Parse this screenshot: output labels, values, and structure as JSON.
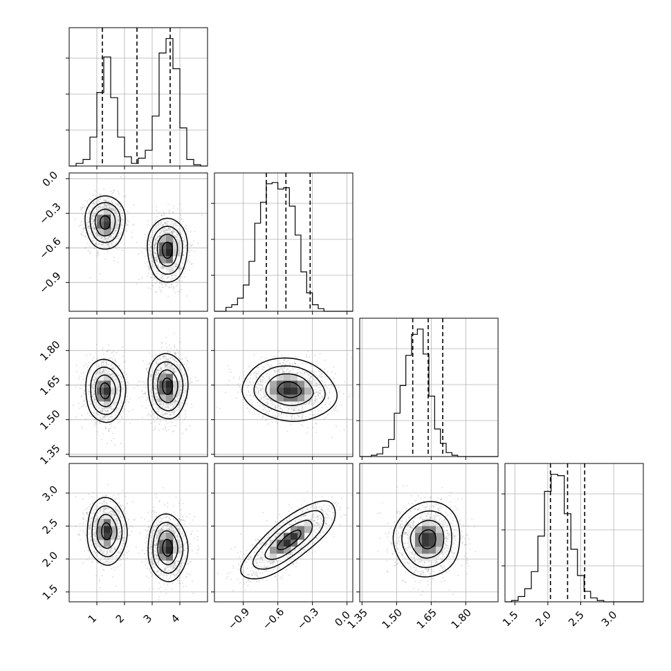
{
  "chart_data": {
    "type": "corner",
    "grid": true,
    "parameters": [
      {
        "range": [
          0,
          5
        ],
        "ticks": [
          1,
          2,
          3,
          4
        ],
        "tick_labels": [
          "1",
          "2",
          "3",
          "4"
        ],
        "quantiles": [
          1.2,
          2.45,
          3.65
        ],
        "histogram": {
          "bin_start": 0.0,
          "bin_width": 0.25,
          "counts": [
            0,
            0.02,
            0.05,
            0.22,
            0.56,
            0.83,
            0.52,
            0.22,
            0.07,
            0.02,
            0.06,
            0.12,
            0.38,
            0.86,
            0.97,
            0.74,
            0.29,
            0.05,
            0.01,
            0
          ]
        }
      },
      {
        "range": [
          -1.15,
          0.05
        ],
        "ticks": [
          -0.9,
          -0.6,
          -0.3,
          0.0
        ],
        "tick_labels": [
          "−0.9",
          "−0.6",
          "−0.3",
          "0.0"
        ],
        "quantiles": [
          -0.7,
          -0.53,
          -0.32
        ],
        "histogram": {
          "bin_start": -1.15,
          "bin_width": 0.05,
          "counts": [
            0,
            0,
            0.03,
            0.05,
            0.1,
            0.2,
            0.38,
            0.67,
            0.83,
            0.97,
            0.98,
            0.93,
            0.94,
            0.8,
            0.58,
            0.3,
            0.14,
            0.05,
            0.02,
            0,
            0,
            0,
            0,
            0
          ]
        }
      },
      {
        "range": [
          1.34,
          1.94
        ],
        "ticks": [
          1.35,
          1.5,
          1.65,
          1.8
        ],
        "tick_labels": [
          "1.35",
          "1.50",
          "1.65",
          "1.80"
        ],
        "quantiles": [
          1.57,
          1.637,
          1.7
        ],
        "histogram": {
          "bin_start": 1.34,
          "bin_width": 0.025,
          "counts": [
            0,
            0,
            0.01,
            0.02,
            0.07,
            0.13,
            0.33,
            0.54,
            0.77,
            0.93,
            0.97,
            0.78,
            0.46,
            0.21,
            0.1,
            0.03,
            0.01,
            0,
            0,
            0,
            0,
            0,
            0,
            0
          ]
        }
      },
      {
        "range": [
          1.35,
          3.45
        ],
        "ticks": [
          1.5,
          2.0,
          2.5,
          3.0
        ],
        "tick_labels": [
          "1.5",
          "2.0",
          "2.5",
          "3.0"
        ],
        "quantiles": [
          2.04,
          2.3,
          2.56
        ],
        "histogram": {
          "bin_start": 1.35,
          "bin_width": 0.1,
          "counts": [
            0,
            0.01,
            0.04,
            0.1,
            0.23,
            0.5,
            0.84,
            0.97,
            0.96,
            0.67,
            0.4,
            0.2,
            0.08,
            0.03,
            0.01,
            0,
            0,
            0,
            0,
            0,
            0
          ]
        }
      }
    ],
    "pairs": [
      {
        "col": 0,
        "row": 1,
        "blobs": [
          {
            "cx": 1.3,
            "cy": -0.38,
            "sx": 0.3,
            "sy": 0.1,
            "rho": 0,
            "w": 1
          },
          {
            "cx": 3.55,
            "cy": -0.62,
            "sx": 0.3,
            "sy": 0.12,
            "rho": 0,
            "w": 1.15
          }
        ]
      },
      {
        "col": 0,
        "row": 2,
        "blobs": [
          {
            "cx": 1.3,
            "cy": 1.625,
            "sx": 0.3,
            "sy": 0.058,
            "rho": 0,
            "w": 1
          },
          {
            "cx": 3.55,
            "cy": 1.645,
            "sx": 0.3,
            "sy": 0.06,
            "rho": 0,
            "w": 1.15
          }
        ]
      },
      {
        "col": 0,
        "row": 3,
        "blobs": [
          {
            "cx": 1.35,
            "cy": 2.42,
            "sx": 0.3,
            "sy": 0.21,
            "rho": 0,
            "w": 1
          },
          {
            "cx": 3.55,
            "cy": 2.17,
            "sx": 0.3,
            "sy": 0.21,
            "rho": 0,
            "w": 1.15
          }
        ]
      },
      {
        "col": 1,
        "row": 2,
        "blobs": [
          {
            "cx": -0.5,
            "cy": 1.63,
            "sx": 0.17,
            "sy": 0.055,
            "rho": -0.1,
            "w": 1
          }
        ]
      },
      {
        "col": 1,
        "row": 3,
        "blobs": [
          {
            "cx": -0.5,
            "cy": 2.29,
            "sx": 0.17,
            "sy": 0.24,
            "rho": 0.78,
            "w": 1
          }
        ]
      },
      {
        "col": 2,
        "row": 3,
        "blobs": [
          {
            "cx": 1.635,
            "cy": 2.3,
            "sx": 0.06,
            "sy": 0.24,
            "rho": 0,
            "w": 1
          }
        ]
      }
    ]
  }
}
